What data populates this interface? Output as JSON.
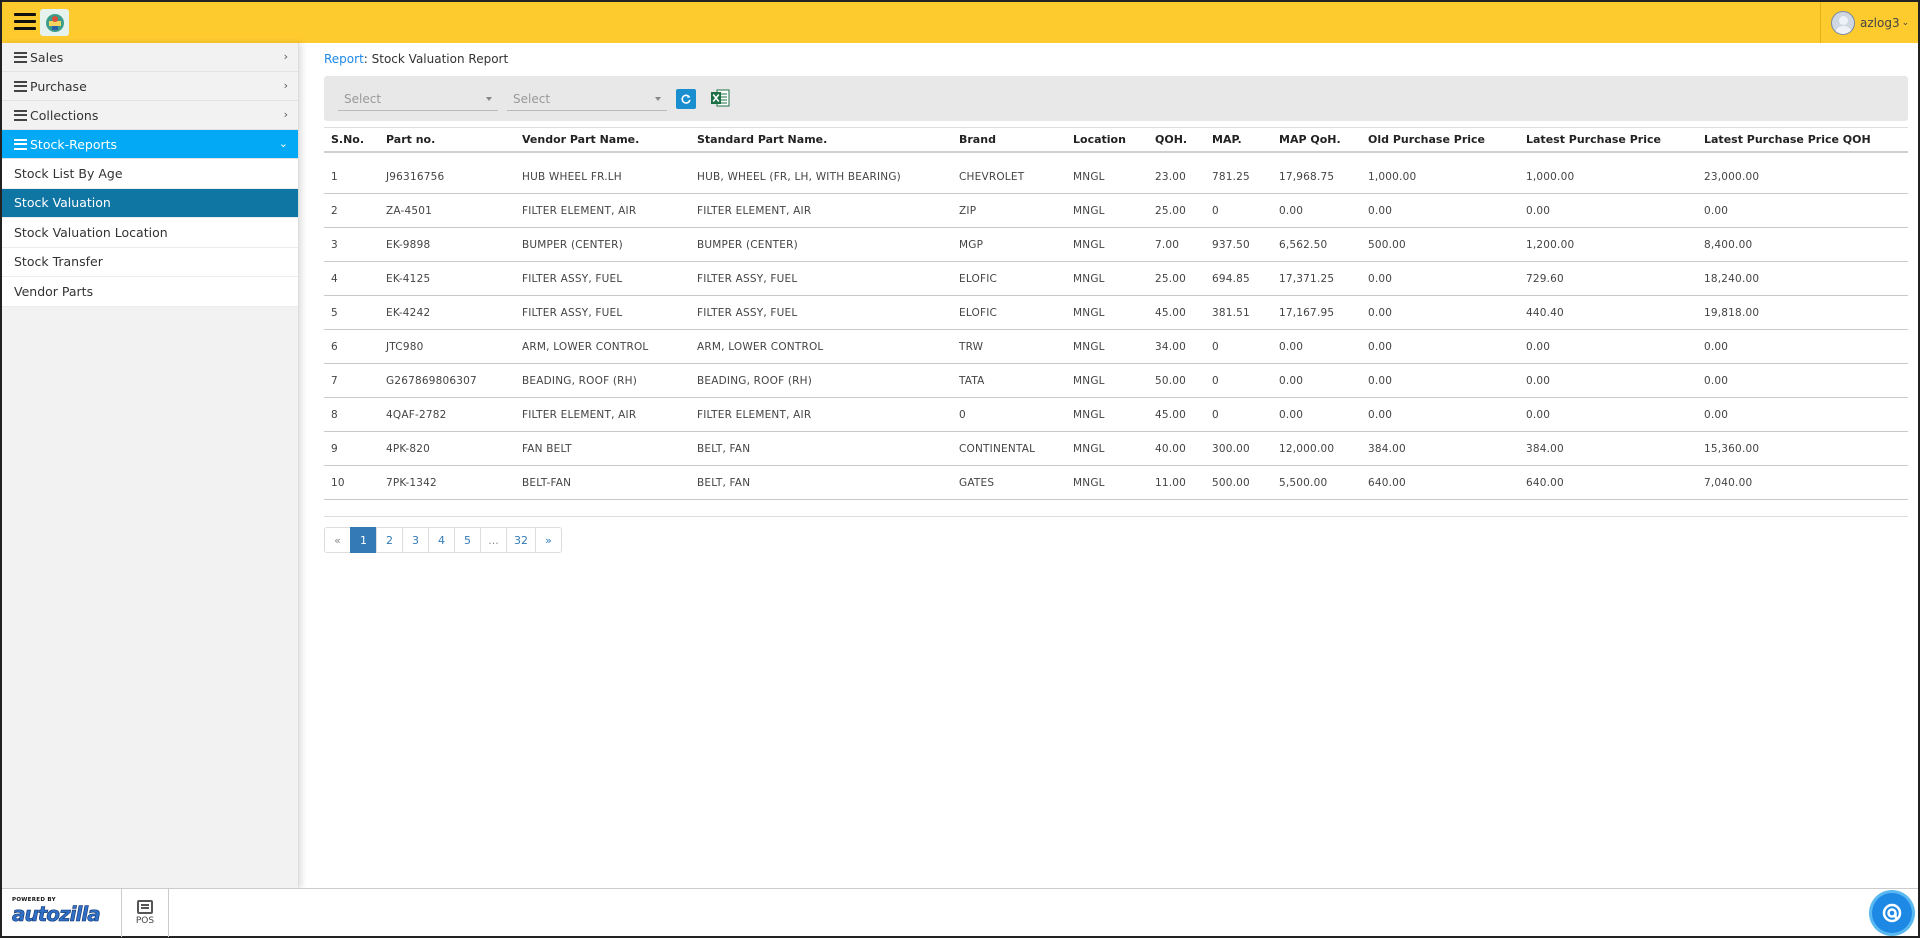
{
  "header": {
    "username": "azlog3"
  },
  "sidebar": {
    "menu": [
      {
        "label": "Sales"
      },
      {
        "label": "Purchase"
      },
      {
        "label": "Collections"
      },
      {
        "label": "Stock-Reports"
      }
    ],
    "submenu": [
      {
        "label": "Stock List By Age"
      },
      {
        "label": "Stock Valuation"
      },
      {
        "label": "Stock Valuation Location"
      },
      {
        "label": "Stock Transfer"
      },
      {
        "label": "Vendor Parts"
      }
    ]
  },
  "breadcrumb": {
    "link": "Report",
    "separator": ":",
    "current": " Stock Valuation Report"
  },
  "filters": {
    "select1": "Select",
    "select2": "Select"
  },
  "table": {
    "headers": [
      "S.No.",
      "Part no.",
      "Vendor Part Name.",
      "Standard Part Name.",
      "Brand",
      "Location",
      "QOH.",
      "MAP.",
      "MAP QoH.",
      "Old Purchase Price",
      "Latest Purchase Price",
      "Latest Purchase Price QOH"
    ],
    "rows": [
      [
        "1",
        "J96316756",
        "HUB WHEEL FR.LH",
        "HUB, WHEEL (FR, LH, WITH BEARING)",
        "CHEVROLET",
        "MNGL",
        "23.00",
        "781.25",
        "17,968.75",
        "1,000.00",
        "1,000.00",
        "23,000.00"
      ],
      [
        "2",
        "ZA-4501",
        "FILTER ELEMENT, AIR",
        "FILTER ELEMENT, AIR",
        "ZIP",
        "MNGL",
        "25.00",
        "0",
        "0.00",
        "0.00",
        "0.00",
        "0.00"
      ],
      [
        "3",
        "EK-9898",
        "BUMPER (CENTER)",
        "BUMPER (CENTER)",
        "MGP",
        "MNGL",
        "7.00",
        "937.50",
        "6,562.50",
        "500.00",
        "1,200.00",
        "8,400.00"
      ],
      [
        "4",
        "EK-4125",
        "FILTER ASSY, FUEL",
        "FILTER ASSY, FUEL",
        "ELOFIC",
        "MNGL",
        "25.00",
        "694.85",
        "17,371.25",
        "0.00",
        "729.60",
        "18,240.00"
      ],
      [
        "5",
        "EK-4242",
        "FILTER ASSY, FUEL",
        "FILTER ASSY, FUEL",
        "ELOFIC",
        "MNGL",
        "45.00",
        "381.51",
        "17,167.95",
        "0.00",
        "440.40",
        "19,818.00"
      ],
      [
        "6",
        "JTC980",
        "ARM, LOWER CONTROL",
        "ARM, LOWER CONTROL",
        "TRW",
        "MNGL",
        "34.00",
        "0",
        "0.00",
        "0.00",
        "0.00",
        "0.00"
      ],
      [
        "7",
        "G267869806307",
        "BEADING, ROOF (RH)",
        "BEADING, ROOF (RH)",
        "TATA",
        "MNGL",
        "50.00",
        "0",
        "0.00",
        "0.00",
        "0.00",
        "0.00"
      ],
      [
        "8",
        "4QAF-2782",
        "FILTER ELEMENT, AIR",
        "FILTER ELEMENT, AIR",
        "0",
        "MNGL",
        "45.00",
        "0",
        "0.00",
        "0.00",
        "0.00",
        "0.00"
      ],
      [
        "9",
        "4PK-820",
        "FAN BELT",
        "BELT, FAN",
        "CONTINENTAL",
        "MNGL",
        "40.00",
        "300.00",
        "12,000.00",
        "384.00",
        "384.00",
        "15,360.00"
      ],
      [
        "10",
        "7PK-1342",
        "BELT-FAN",
        "BELT, FAN",
        "GATES",
        "MNGL",
        "11.00",
        "500.00",
        "5,500.00",
        "640.00",
        "640.00",
        "7,040.00"
      ]
    ]
  },
  "pagination": {
    "prev": "«",
    "pages": [
      "1",
      "2",
      "3",
      "4",
      "5",
      "...",
      "32"
    ],
    "next": "»",
    "active": "1"
  },
  "footer": {
    "powered_by": "POWERED BY",
    "brand": "autozilla",
    "pos_label": "POS"
  },
  "colors": {
    "header_bg": "#fecb2f",
    "active_menu": "#03a9f4",
    "active_submenu": "#0f76a4",
    "link": "#1e88e5"
  },
  "icons": {
    "hamburger": "hamburger-icon",
    "refresh": "refresh-icon",
    "excel": "excel-export-icon",
    "chat": "chat-icon"
  }
}
